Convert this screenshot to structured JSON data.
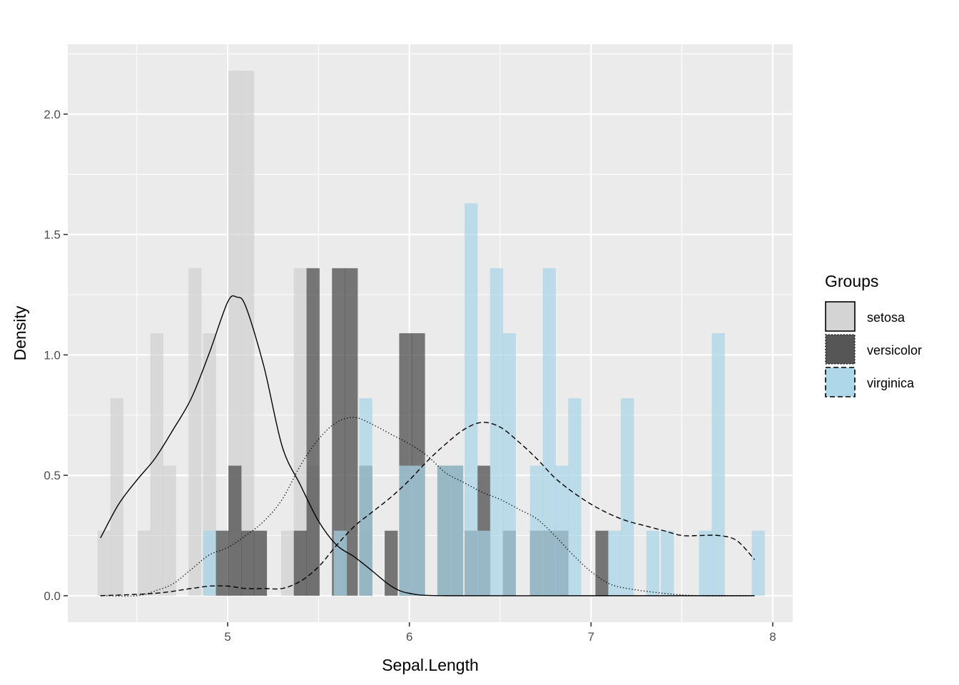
{
  "chart_data": {
    "type": "histogram_density",
    "xlabel": "Sepal.Length",
    "ylabel": "Density",
    "xlim": [
      4.12,
      8.11
    ],
    "ylim": [
      -0.11,
      2.29
    ],
    "x_ticks": [
      5,
      6,
      7,
      8
    ],
    "x_tick_labels": [
      "5",
      "6",
      "7",
      "8"
    ],
    "y_ticks": [
      0.0,
      0.5,
      1.0,
      1.5,
      2.0
    ],
    "y_tick_labels": [
      "0.0",
      "0.5",
      "1.0",
      "1.5",
      "2.0"
    ],
    "bin_width": 0.072,
    "bins_start": 4.28,
    "grid": true,
    "legend": {
      "title": "Groups",
      "position": "right",
      "entries": [
        "setosa",
        "versicolor",
        "virginica"
      ]
    },
    "series": [
      {
        "name": "setosa",
        "fill": "#cccccc",
        "fill_opacity": 0.6,
        "line_style": "solid",
        "bins": [
          {
            "x": 4.32,
            "density": 0.27
          },
          {
            "x": 4.39,
            "density": 0.82
          },
          {
            "x": 4.54,
            "density": 0.27
          },
          {
            "x": 4.61,
            "density": 1.09
          },
          {
            "x": 4.68,
            "density": 0.54
          },
          {
            "x": 4.82,
            "density": 1.36
          },
          {
            "x": 4.9,
            "density": 1.09
          },
          {
            "x": 5.04,
            "density": 2.18
          },
          {
            "x": 5.11,
            "density": 2.18
          },
          {
            "x": 5.18,
            "density": 0.27
          },
          {
            "x": 5.33,
            "density": 0.27
          },
          {
            "x": 5.4,
            "density": 1.36
          },
          {
            "x": 5.47,
            "density": 0.54
          },
          {
            "x": 5.76,
            "density": 0.27
          }
        ],
        "density_curve": [
          [
            4.3,
            0.24
          ],
          [
            4.4,
            0.38
          ],
          [
            4.5,
            0.48
          ],
          [
            4.6,
            0.57
          ],
          [
            4.7,
            0.69
          ],
          [
            4.8,
            0.82
          ],
          [
            4.9,
            1.01
          ],
          [
            5.0,
            1.22
          ],
          [
            5.05,
            1.24
          ],
          [
            5.1,
            1.2
          ],
          [
            5.2,
            0.95
          ],
          [
            5.3,
            0.62
          ],
          [
            5.4,
            0.46
          ],
          [
            5.5,
            0.31
          ],
          [
            5.6,
            0.21
          ],
          [
            5.7,
            0.16
          ],
          [
            5.8,
            0.1
          ],
          [
            5.9,
            0.04
          ],
          [
            6.0,
            0.01
          ],
          [
            6.2,
            0.0
          ],
          [
            7.0,
            0.0
          ],
          [
            7.9,
            0.0
          ]
        ]
      },
      {
        "name": "versicolor",
        "fill": "#4d4d4d",
        "fill_opacity": 0.75,
        "line_style": "dotted",
        "bins": [
          {
            "x": 4.97,
            "density": 0.27
          },
          {
            "x": 5.04,
            "density": 0.54
          },
          {
            "x": 5.11,
            "density": 0.27
          },
          {
            "x": 5.18,
            "density": 0.27
          },
          {
            "x": 5.4,
            "density": 0.27
          },
          {
            "x": 5.47,
            "density": 1.36
          },
          {
            "x": 5.61,
            "density": 1.36
          },
          {
            "x": 5.68,
            "density": 1.36
          },
          {
            "x": 5.76,
            "density": 0.54
          },
          {
            "x": 5.9,
            "density": 0.27
          },
          {
            "x": 5.98,
            "density": 1.09
          },
          {
            "x": 6.05,
            "density": 1.09
          },
          {
            "x": 6.19,
            "density": 0.54
          },
          {
            "x": 6.26,
            "density": 0.54
          },
          {
            "x": 6.34,
            "density": 0.27
          },
          {
            "x": 6.41,
            "density": 0.54
          },
          {
            "x": 6.55,
            "density": 0.27
          },
          {
            "x": 6.7,
            "density": 0.27
          },
          {
            "x": 6.77,
            "density": 0.27
          },
          {
            "x": 6.84,
            "density": 0.27
          },
          {
            "x": 7.06,
            "density": 0.27
          }
        ],
        "density_curve": [
          [
            4.3,
            0.0
          ],
          [
            4.5,
            0.0
          ],
          [
            4.6,
            0.02
          ],
          [
            4.7,
            0.05
          ],
          [
            4.8,
            0.11
          ],
          [
            4.9,
            0.17
          ],
          [
            5.0,
            0.2
          ],
          [
            5.1,
            0.25
          ],
          [
            5.2,
            0.31
          ],
          [
            5.3,
            0.4
          ],
          [
            5.4,
            0.54
          ],
          [
            5.5,
            0.65
          ],
          [
            5.6,
            0.72
          ],
          [
            5.7,
            0.74
          ],
          [
            5.8,
            0.71
          ],
          [
            5.9,
            0.67
          ],
          [
            6.0,
            0.63
          ],
          [
            6.1,
            0.58
          ],
          [
            6.2,
            0.51
          ],
          [
            6.3,
            0.47
          ],
          [
            6.4,
            0.43
          ],
          [
            6.5,
            0.4
          ],
          [
            6.6,
            0.36
          ],
          [
            6.7,
            0.32
          ],
          [
            6.8,
            0.25
          ],
          [
            6.9,
            0.17
          ],
          [
            7.0,
            0.1
          ],
          [
            7.1,
            0.05
          ],
          [
            7.2,
            0.03
          ],
          [
            7.4,
            0.01
          ],
          [
            7.6,
            0.0
          ],
          [
            7.9,
            0.0
          ]
        ]
      },
      {
        "name": "virginica",
        "fill": "#a6d4e8",
        "fill_opacity": 0.7,
        "line_style": "dashed",
        "bins": [
          {
            "x": 4.9,
            "density": 0.27
          },
          {
            "x": 5.62,
            "density": 0.27
          },
          {
            "x": 5.76,
            "density": 0.82
          },
          {
            "x": 5.98,
            "density": 0.54
          },
          {
            "x": 6.05,
            "density": 0.54
          },
          {
            "x": 6.19,
            "density": 0.54
          },
          {
            "x": 6.26,
            "density": 0.54
          },
          {
            "x": 6.34,
            "density": 1.63
          },
          {
            "x": 6.41,
            "density": 0.27
          },
          {
            "x": 6.48,
            "density": 1.36
          },
          {
            "x": 6.55,
            "density": 1.09
          },
          {
            "x": 6.7,
            "density": 0.54
          },
          {
            "x": 6.77,
            "density": 1.36
          },
          {
            "x": 6.84,
            "density": 0.54
          },
          {
            "x": 6.91,
            "density": 0.82
          },
          {
            "x": 7.13,
            "density": 0.27
          },
          {
            "x": 7.2,
            "density": 0.82
          },
          {
            "x": 7.34,
            "density": 0.27
          },
          {
            "x": 7.42,
            "density": 0.27
          },
          {
            "x": 7.63,
            "density": 0.27
          },
          {
            "x": 7.7,
            "density": 1.09
          },
          {
            "x": 7.92,
            "density": 0.27
          }
        ],
        "density_curve": [
          [
            4.3,
            0.0
          ],
          [
            4.6,
            0.01
          ],
          [
            4.8,
            0.03
          ],
          [
            4.9,
            0.04
          ],
          [
            5.0,
            0.04
          ],
          [
            5.1,
            0.03
          ],
          [
            5.2,
            0.03
          ],
          [
            5.3,
            0.03
          ],
          [
            5.4,
            0.06
          ],
          [
            5.5,
            0.12
          ],
          [
            5.6,
            0.21
          ],
          [
            5.7,
            0.29
          ],
          [
            5.8,
            0.35
          ],
          [
            5.9,
            0.41
          ],
          [
            6.0,
            0.48
          ],
          [
            6.1,
            0.56
          ],
          [
            6.2,
            0.63
          ],
          [
            6.3,
            0.69
          ],
          [
            6.4,
            0.72
          ],
          [
            6.5,
            0.7
          ],
          [
            6.6,
            0.64
          ],
          [
            6.7,
            0.57
          ],
          [
            6.8,
            0.49
          ],
          [
            6.9,
            0.43
          ],
          [
            7.0,
            0.38
          ],
          [
            7.1,
            0.34
          ],
          [
            7.2,
            0.31
          ],
          [
            7.3,
            0.29
          ],
          [
            7.4,
            0.27
          ],
          [
            7.5,
            0.25
          ],
          [
            7.6,
            0.25
          ],
          [
            7.7,
            0.25
          ],
          [
            7.8,
            0.23
          ],
          [
            7.9,
            0.15
          ]
        ]
      }
    ]
  }
}
